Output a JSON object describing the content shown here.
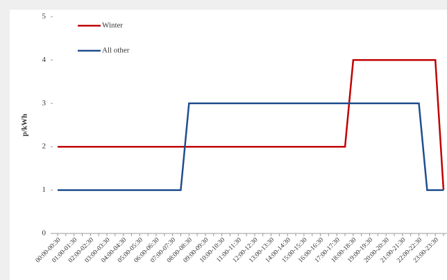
{
  "chart_data": {
    "type": "line",
    "y_label": "p/kWh",
    "categories": [
      "00:00-00:30",
      null,
      "01:00-01:30",
      null,
      "02:00-02:30",
      null,
      "03:00-03:30",
      null,
      "04:00-04:30",
      null,
      "05:00-05:30",
      null,
      "06:00-06:30",
      null,
      "07:00-07:30",
      null,
      "08:00-08:30",
      null,
      "09:00-09:30",
      null,
      "10:00-10:30",
      null,
      "11:00-11:30",
      null,
      "12:00-12:30",
      null,
      "13:00-13:30",
      null,
      "14:00-14:30",
      null,
      "15:00-15:30",
      null,
      "16:00-16:30",
      null,
      "17:00-17:30",
      null,
      "18:00-18:30",
      null,
      "19:00-19:30",
      null,
      "20:00-20:30",
      null,
      "21:00-21:30",
      null,
      "22:00-22:30",
      null,
      "23:00-23:30",
      null
    ],
    "series": [
      {
        "name": "Winter",
        "color": "#c00000",
        "values": [
          2,
          2,
          2,
          2,
          2,
          2,
          2,
          2,
          2,
          2,
          2,
          2,
          2,
          2,
          2,
          2,
          2,
          2,
          2,
          2,
          2,
          2,
          2,
          2,
          2,
          2,
          2,
          2,
          2,
          2,
          2,
          2,
          2,
          2,
          2,
          2,
          4,
          4,
          4,
          4,
          4,
          4,
          4,
          4,
          4,
          4,
          4,
          1
        ]
      },
      {
        "name": "All other",
        "color": "#1f4e8c",
        "values": [
          1,
          1,
          1,
          1,
          1,
          1,
          1,
          1,
          1,
          1,
          1,
          1,
          1,
          1,
          1,
          1,
          3,
          3,
          3,
          3,
          3,
          3,
          3,
          3,
          3,
          3,
          3,
          3,
          3,
          3,
          3,
          3,
          3,
          3,
          3,
          3,
          3,
          3,
          3,
          3,
          3,
          3,
          3,
          3,
          3,
          1,
          1,
          1
        ]
      }
    ],
    "ylim": [
      0,
      5
    ],
    "yticks": [
      0,
      1,
      2,
      3,
      4,
      5
    ]
  }
}
